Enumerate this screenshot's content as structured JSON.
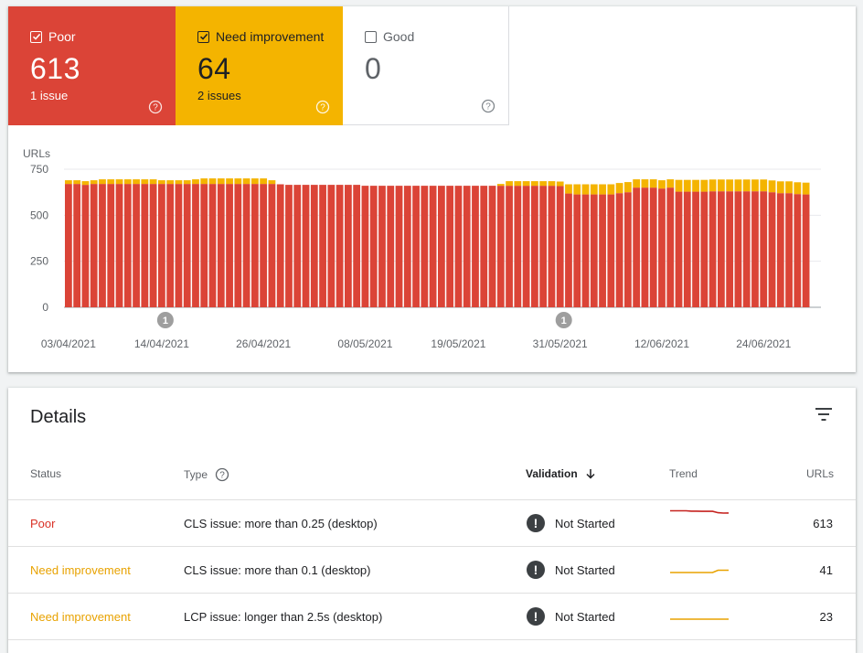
{
  "tiles": {
    "poor": {
      "label": "Poor",
      "count": "613",
      "sub": "1 issue",
      "checked": true,
      "color": "#db4437"
    },
    "need": {
      "label": "Need improvement",
      "count": "64",
      "sub": "2 issues",
      "checked": true,
      "color": "#f4b400"
    },
    "good": {
      "label": "Good",
      "count": "0",
      "checked": false,
      "color": "#ffffff"
    }
  },
  "chart_data": {
    "type": "bar",
    "stacked": true,
    "ylabel": "URLs",
    "ylim": [
      0,
      750
    ],
    "yticks": [
      "0",
      "250",
      "500",
      "750"
    ],
    "x_tick_labels": [
      "03/04/2021",
      "14/04/2021",
      "26/04/2021",
      "08/05/2021",
      "19/05/2021",
      "31/05/2021",
      "12/06/2021",
      "24/06/2021"
    ],
    "x_tick_indices": [
      0,
      11,
      23,
      35,
      46,
      58,
      70,
      82
    ],
    "annotations": [
      {
        "index": 11,
        "text": "1"
      },
      {
        "index": 58,
        "text": "1"
      }
    ],
    "series": [
      {
        "name": "Poor",
        "color": "#db4437",
        "values": [
          670,
          670,
          665,
          670,
          670,
          670,
          670,
          670,
          670,
          670,
          670,
          670,
          670,
          670,
          670,
          670,
          670,
          670,
          670,
          670,
          670,
          670,
          670,
          670,
          670,
          668,
          665,
          665,
          665,
          665,
          665,
          665,
          665,
          665,
          665,
          660,
          660,
          660,
          660,
          660,
          660,
          660,
          660,
          660,
          660,
          660,
          660,
          660,
          660,
          660,
          660,
          660,
          660,
          660,
          660,
          660,
          660,
          660,
          658,
          618,
          613,
          613,
          613,
          613,
          613,
          620,
          625,
          650,
          650,
          650,
          645,
          650,
          628,
          628,
          628,
          628,
          630,
          630,
          630,
          630,
          630,
          630,
          630,
          625,
          620,
          620,
          615,
          613
        ]
      },
      {
        "name": "Need improvement",
        "color": "#f4b400",
        "values": [
          20,
          20,
          20,
          20,
          25,
          25,
          25,
          25,
          25,
          25,
          25,
          20,
          20,
          20,
          20,
          25,
          30,
          30,
          30,
          30,
          30,
          30,
          30,
          30,
          20,
          0,
          0,
          0,
          0,
          0,
          0,
          0,
          0,
          0,
          0,
          0,
          0,
          0,
          0,
          0,
          0,
          0,
          0,
          0,
          0,
          0,
          0,
          0,
          0,
          0,
          0,
          10,
          25,
          25,
          25,
          25,
          25,
          25,
          25,
          50,
          55,
          55,
          55,
          55,
          55,
          55,
          55,
          45,
          45,
          45,
          45,
          45,
          64,
          64,
          64,
          64,
          64,
          64,
          64,
          64,
          64,
          64,
          64,
          64,
          64,
          64,
          64,
          64
        ]
      }
    ]
  },
  "details": {
    "title": "Details",
    "headers": {
      "status": "Status",
      "type": "Type",
      "validation": "Validation",
      "trend": "Trend",
      "urls": "URLs"
    },
    "rows": [
      {
        "status": "Poor",
        "type": "CLS issue: more than 0.25 (desktop)",
        "validation": "Not Started",
        "urls": "613",
        "trend_color": "#c5221f",
        "trend": [
          670,
          670,
          670,
          670,
          660,
          660,
          655,
          655,
          655,
          620,
          610,
          613
        ]
      },
      {
        "status": "Need improvement",
        "type": "CLS issue: more than 0.1 (desktop)",
        "validation": "Not Started",
        "urls": "41",
        "trend_color": "#e8a200",
        "trend": [
          40,
          40,
          40,
          40,
          40,
          40,
          40,
          40,
          40,
          41,
          41,
          41
        ]
      },
      {
        "status": "Need improvement",
        "type": "LCP issue: longer than 2.5s (desktop)",
        "validation": "Not Started",
        "urls": "23",
        "trend_color": "#e8a200",
        "trend": [
          23,
          23,
          23,
          23,
          23,
          23,
          23,
          23,
          23,
          23,
          23,
          23
        ]
      }
    ]
  }
}
